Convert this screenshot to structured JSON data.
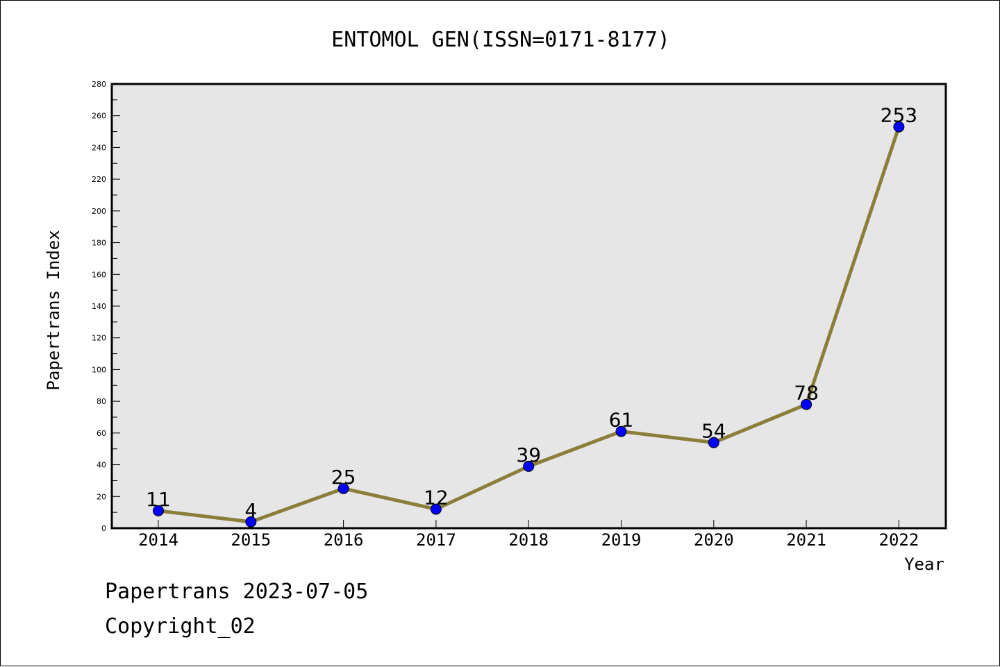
{
  "chart_data": {
    "type": "line",
    "title": "ENTOMOL GEN(ISSN=0171-8177)",
    "xlabel": "Year",
    "ylabel": "Papertrans Index",
    "categories": [
      "2014",
      "2015",
      "2016",
      "2017",
      "2018",
      "2019",
      "2020",
      "2021",
      "2022"
    ],
    "series": [
      {
        "values": [
          11,
          4,
          25,
          12,
          39,
          61,
          54,
          78,
          253
        ]
      }
    ],
    "ylim": [
      0,
      280
    ],
    "yticks": [
      0,
      20,
      40,
      60,
      80,
      100,
      120,
      140,
      160,
      180,
      200,
      220,
      240,
      260,
      280
    ],
    "grid": false,
    "colors": {
      "line": "#8B7D3A",
      "marker": "#0000FF",
      "plot_background": "#E6E6E6"
    }
  },
  "footer": {
    "line1": "Papertrans 2023-07-05",
    "line2": "Copyright_02"
  }
}
